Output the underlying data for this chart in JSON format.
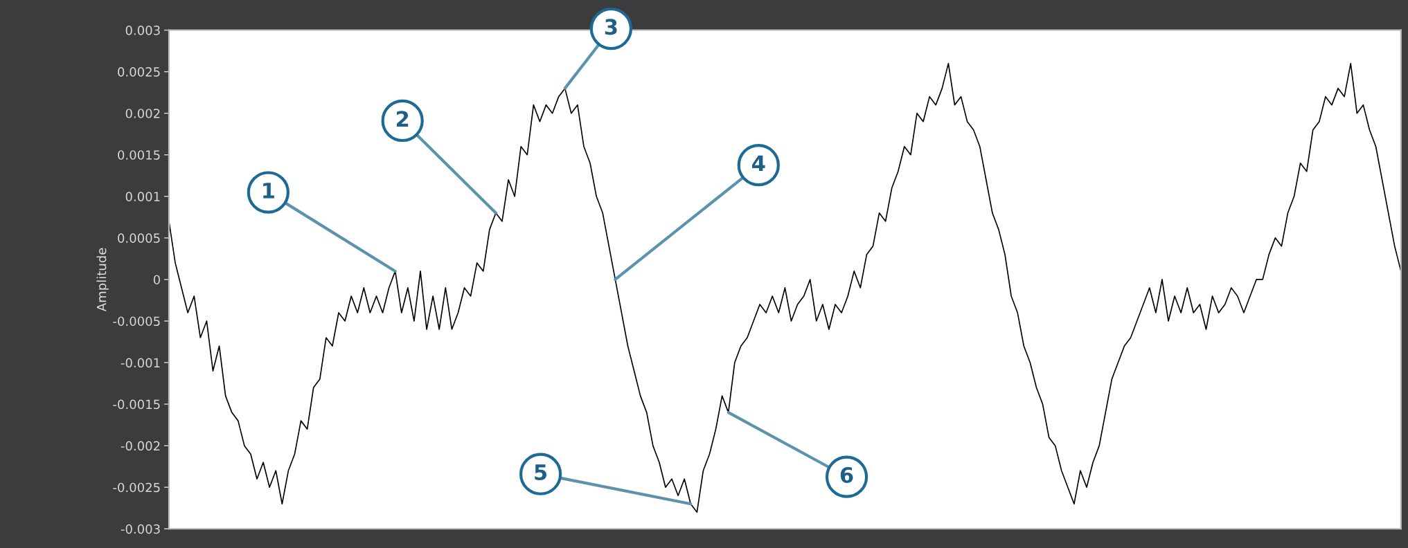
{
  "chart_data": {
    "type": "line",
    "ylabel": "Amplitude",
    "tick_labels": "y",
    "grid": false,
    "legend": false,
    "marker": "none",
    "line_style": "solid",
    "categories": [
      null,
      null,
      null,
      null,
      null,
      null,
      null,
      null,
      null,
      null,
      null,
      null,
      null,
      null,
      null,
      null,
      null,
      null,
      null,
      null,
      null,
      null,
      null,
      null,
      null,
      null,
      null,
      null,
      null,
      null,
      null,
      null,
      null,
      null,
      null,
      null,
      null,
      null,
      null,
      null,
      null,
      null,
      null,
      null,
      null,
      null,
      null,
      null,
      null,
      null,
      null,
      null,
      null,
      null,
      null,
      null,
      null,
      null,
      null,
      null,
      null,
      null,
      null,
      null,
      null,
      null,
      null,
      null,
      null,
      null,
      null,
      null,
      null,
      null,
      null,
      null,
      null,
      null,
      null,
      null,
      null,
      null,
      null,
      null,
      null,
      null,
      null,
      null,
      null,
      null,
      null,
      null,
      null,
      null,
      null,
      null,
      null,
      null,
      null,
      null,
      null,
      null,
      null,
      null,
      null,
      null,
      null,
      null,
      null,
      null,
      null,
      null,
      null,
      null,
      null,
      null,
      null,
      null,
      null,
      null,
      null,
      null,
      null,
      null,
      null,
      null,
      null,
      null,
      null,
      null,
      null,
      null,
      null,
      null,
      null,
      null,
      null,
      null,
      null,
      null,
      null,
      null,
      null,
      null,
      null,
      null,
      null,
      null,
      null,
      null,
      null,
      null,
      null,
      null,
      null,
      null,
      null,
      null,
      null,
      null,
      null,
      null,
      null,
      null,
      null,
      null,
      null,
      null,
      null,
      null,
      null,
      null,
      null,
      null,
      null,
      null,
      null,
      null,
      null,
      null,
      null,
      null,
      null,
      null,
      null,
      null,
      null,
      null,
      null,
      null,
      null,
      null,
      null,
      null,
      null,
      null,
      null
    ],
    "ylim": [
      -0.003,
      0.003
    ],
    "yticks": [
      -0.003,
      -0.0025,
      -0.002,
      -0.0015,
      -0.001,
      -0.0005,
      0,
      0.0005,
      0.001,
      0.0015,
      0.002,
      0.0025,
      0.003
    ],
    "series": [
      {
        "color": "#000000",
        "values": [
          0.0007,
          0.0002,
          -0.0001,
          -0.0004,
          -0.0002,
          -0.0007,
          -0.0005,
          -0.0011,
          -0.0008,
          -0.0014,
          -0.0016,
          -0.0017,
          -0.002,
          -0.0021,
          -0.0024,
          -0.0022,
          -0.0025,
          -0.0023,
          -0.0027,
          -0.0023,
          -0.0021,
          -0.0017,
          -0.0018,
          -0.0013,
          -0.0012,
          -0.0007,
          -0.0008,
          -0.0004,
          -0.0005,
          -0.0002,
          -0.0004,
          -0.0001,
          -0.0004,
          -0.0002,
          -0.0004,
          -0.0001,
          0.0001,
          -0.0004,
          -0.0001,
          -0.0005,
          0.0001,
          -0.0006,
          -0.0002,
          -0.0006,
          -0.0001,
          -0.0006,
          -0.0004,
          -0.0001,
          -0.0002,
          0.0002,
          0.0001,
          0.0006,
          0.0008,
          0.0007,
          0.0012,
          0.001,
          0.0016,
          0.0015,
          0.0021,
          0.0019,
          0.0021,
          0.002,
          0.0022,
          0.0023,
          0.002,
          0.0021,
          0.0016,
          0.0014,
          0.001,
          0.0008,
          0.0004,
          0.0,
          -0.0004,
          -0.0008,
          -0.0011,
          -0.0014,
          -0.0016,
          -0.002,
          -0.0022,
          -0.0025,
          -0.0024,
          -0.0026,
          -0.0024,
          -0.0027,
          -0.0028,
          -0.0023,
          -0.0021,
          -0.0018,
          -0.0014,
          -0.0016,
          -0.001,
          -0.0008,
          -0.0007,
          -0.0005,
          -0.0003,
          -0.0004,
          -0.0002,
          -0.0004,
          -0.0001,
          -0.0005,
          -0.0003,
          -0.0002,
          0.0,
          -0.0005,
          -0.0003,
          -0.0006,
          -0.0003,
          -0.0004,
          -0.0002,
          0.0001,
          -0.0001,
          0.0003,
          0.0004,
          0.0008,
          0.0007,
          0.0011,
          0.0013,
          0.0016,
          0.0015,
          0.002,
          0.0019,
          0.0022,
          0.0021,
          0.0023,
          0.0026,
          0.0021,
          0.0022,
          0.0019,
          0.0018,
          0.0016,
          0.0012,
          0.0008,
          0.0006,
          0.0003,
          -0.0002,
          -0.0004,
          -0.0008,
          -0.001,
          -0.0013,
          -0.0015,
          -0.0019,
          -0.002,
          -0.0023,
          -0.0025,
          -0.0027,
          -0.0023,
          -0.0025,
          -0.0022,
          -0.002,
          -0.0016,
          -0.0012,
          -0.001,
          -0.0008,
          -0.0007,
          -0.0005,
          -0.0003,
          -0.0001,
          -0.0004,
          0.0,
          -0.0005,
          -0.0002,
          -0.0004,
          -0.0001,
          -0.0004,
          -0.0003,
          -0.0006,
          -0.0002,
          -0.0004,
          -0.0003,
          -0.0001,
          -0.0002,
          -0.0004,
          -0.0002,
          0.0,
          0.0,
          0.0003,
          0.0005,
          0.0004,
          0.0008,
          0.001,
          0.0014,
          0.0013,
          0.0018,
          0.0019,
          0.0022,
          0.0021,
          0.0023,
          0.0022,
          0.0026,
          0.002,
          0.0021,
          0.0018,
          0.0016,
          0.0012,
          0.0008,
          0.0004,
          0.0001
        ]
      }
    ],
    "annotations": [
      "1",
      "2",
      "3",
      "4",
      "5",
      "6"
    ]
  }
}
